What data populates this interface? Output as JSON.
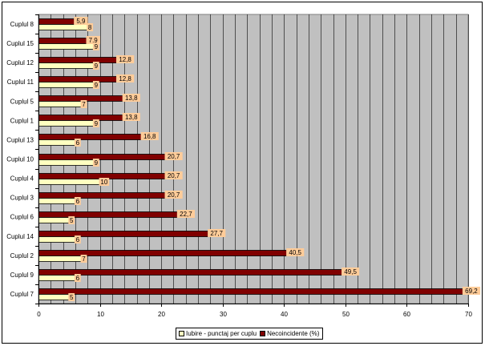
{
  "chart_data": {
    "type": "bar",
    "orientation": "horizontal",
    "categories": [
      "Cuplul 8",
      "Cuplul 15",
      "Cuplul 12",
      "Cuplul 11",
      "Cuplul 5",
      "Cuplul 1",
      "Cuplul 13",
      "Cuplul 10",
      "Cuplul 4",
      "Cuplul 3",
      "Cuplul 6",
      "Cuplul 14",
      "Cuplul 2",
      "Cuplul 9",
      "Cuplul 7"
    ],
    "series": [
      {
        "name": "Iubire - punctaj per cuplu",
        "color": "#ffffc0",
        "values": [
          8,
          9,
          9,
          9,
          7,
          9,
          6,
          9,
          10,
          6,
          5,
          6,
          7,
          6,
          5
        ],
        "labels": [
          "8",
          "9",
          "9",
          "9",
          "7",
          "9",
          "6",
          "9",
          "10",
          "6",
          "5",
          "6",
          "7",
          "6",
          "5"
        ]
      },
      {
        "name": "Necoincidente  (%)",
        "color": "#800000",
        "values": [
          5.9,
          7.9,
          12.8,
          12.8,
          13.8,
          13.8,
          16.8,
          20.7,
          20.7,
          20.7,
          22.7,
          27.7,
          40.5,
          49.5,
          69.2
        ],
        "labels": [
          "5,9",
          "7,9",
          "12,8",
          "12,8",
          "13,8",
          "13,8",
          "16,8",
          "20,7",
          "20,7",
          "20,7",
          "22,7",
          "27,7",
          "40,5",
          "49,5",
          "69,2"
        ]
      }
    ],
    "xlim": [
      0,
      70
    ],
    "xticks": [
      0,
      10,
      20,
      30,
      40,
      50,
      60,
      70
    ],
    "xtick_labels": [
      "0",
      "10",
      "20",
      "30",
      "40",
      "50",
      "60",
      "70"
    ],
    "grid": true,
    "legend_position": "bottom",
    "plot_background": "#c0c0c0",
    "data_label_background": "#ffcc99",
    "title": "",
    "xlabel": "",
    "ylabel": ""
  }
}
